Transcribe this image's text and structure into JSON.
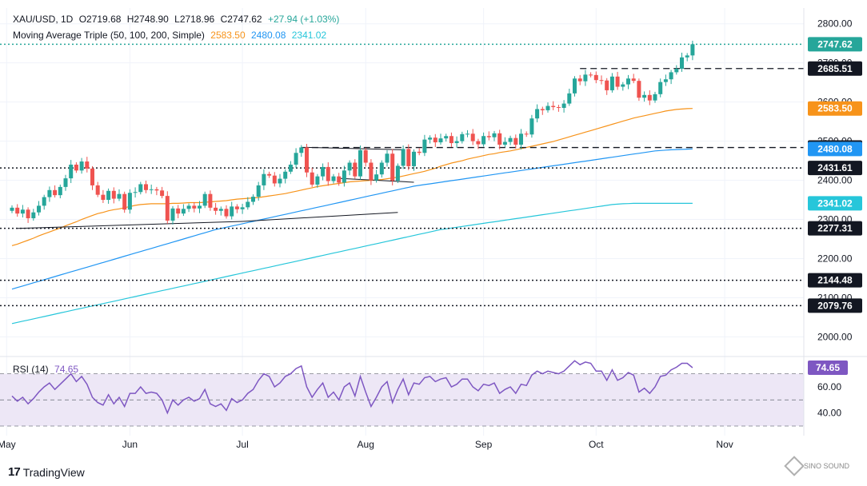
{
  "header": {
    "symbol": "XAU/USD, 1D",
    "o": "O2719.68",
    "h": "H2748.90",
    "l": "L2718.96",
    "c": "C2747.62",
    "change": "+27.94 (+1.03%)",
    "ma_label": "Moving Average Triple (50, 100, 200, Simple)",
    "ma50": "2583.50",
    "ma100": "2480.08",
    "ma200": "2341.02"
  },
  "rsi_label": "RSI (14)",
  "rsi_value": "74.65",
  "branding": {
    "tradingview": "TradingView",
    "watermark": "SINO SOUND"
  },
  "colors": {
    "up": "#26a69a",
    "down": "#ef5350",
    "ma50": "#f7931a",
    "ma100": "#2196f3",
    "ma200": "#26c6da",
    "rsi": "#7e57c2",
    "rsi_band": "#ede7f6",
    "grid": "#f0f3fa"
  },
  "chart_data": {
    "type": "candlestick",
    "price_ticks": [
      2000,
      2100,
      2200,
      2300,
      2400,
      2500,
      2600,
      2700,
      2800
    ],
    "price_range": [
      1960,
      2830
    ],
    "x_labels": [
      {
        "label": "May",
        "i": -1
      },
      {
        "label": "Jun",
        "i": 22
      },
      {
        "label": "Jul",
        "i": 43
      },
      {
        "label": "Aug",
        "i": 66
      },
      {
        "label": "Sep",
        "i": 88
      },
      {
        "label": "Oct",
        "i": 109
      },
      {
        "label": "Nov",
        "i": 133
      }
    ],
    "horizontal_levels": [
      {
        "value": 2747.62,
        "style": "dotted",
        "color": "#26a69a",
        "label": "2747.62",
        "box": "#26a69a"
      },
      {
        "value": 2685.51,
        "style": "dashed",
        "color": "#131722",
        "label": "2685.51",
        "box": "#131722",
        "from": 106
      },
      {
        "value": 2483.75,
        "style": "dashed",
        "color": "#131722",
        "label": "2483.75",
        "box": "#131722",
        "from": 54
      },
      {
        "value": 2431.61,
        "style": "dotted",
        "color": "#131722",
        "label": "2431.61",
        "box": "#131722"
      },
      {
        "value": 2277.31,
        "style": "dotted",
        "color": "#131722",
        "label": "2277.31",
        "box": "#131722"
      },
      {
        "value": 2144.48,
        "style": "dotted",
        "color": "#131722",
        "label": "2144.48",
        "box": "#131722"
      },
      {
        "value": 2079.76,
        "style": "dotted",
        "color": "#131722",
        "label": "2079.76",
        "box": "#131722"
      }
    ],
    "ma_labels": [
      {
        "value": 2583.5,
        "label": "2583.50",
        "box": "#f7931a"
      },
      {
        "value": 2480.08,
        "label": "2480.08",
        "box": "#2196f3"
      },
      {
        "value": 2341.02,
        "label": "2341.02",
        "box": "#26c6da"
      }
    ],
    "trendlines": [
      {
        "i1": 1,
        "v1": 2277,
        "i2": 43,
        "v2": 2295
      },
      {
        "i1": 43,
        "v1": 2295,
        "i2": 72,
        "v2": 2318
      },
      {
        "i1": 61,
        "v1": 2405,
        "i2": 75,
        "v2": 2395
      },
      {
        "i1": 55,
        "v1": 2484,
        "i2": 73,
        "v2": 2478
      }
    ],
    "closes": [
      2330,
      2315,
      2325,
      2303,
      2318,
      2335,
      2357,
      2375,
      2362,
      2383,
      2405,
      2440,
      2425,
      2448,
      2430,
      2387,
      2363,
      2350,
      2373,
      2353,
      2365,
      2325,
      2368,
      2370,
      2390,
      2375,
      2377,
      2374,
      2360,
      2297,
      2328,
      2315,
      2327,
      2335,
      2328,
      2335,
      2365,
      2330,
      2322,
      2327,
      2308,
      2333,
      2326,
      2331,
      2345,
      2358,
      2387,
      2416,
      2412,
      2392,
      2404,
      2422,
      2440,
      2470,
      2484,
      2420,
      2389,
      2410,
      2434,
      2398,
      2410,
      2394,
      2425,
      2445,
      2410,
      2477,
      2445,
      2400,
      2415,
      2445,
      2468,
      2399,
      2437,
      2480,
      2436,
      2473,
      2470,
      2504,
      2509,
      2497,
      2507,
      2513,
      2495,
      2500,
      2518,
      2519,
      2500,
      2492,
      2513,
      2510,
      2520,
      2491,
      2498,
      2508,
      2491,
      2519,
      2517,
      2558,
      2582,
      2579,
      2590,
      2587,
      2585,
      2596,
      2622,
      2660,
      2653,
      2670,
      2669,
      2656,
      2655,
      2630,
      2665,
      2639,
      2645,
      2660,
      2654,
      2611,
      2618,
      2604,
      2620,
      2651,
      2658,
      2676,
      2685,
      2714,
      2719,
      2747.62
    ],
    "ma50": [
      2233,
      2237,
      2242,
      2247,
      2252,
      2258,
      2263,
      2268,
      2273,
      2278,
      2284,
      2289,
      2294,
      2300,
      2305,
      2310,
      2315,
      2318,
      2322,
      2325,
      2327,
      2330,
      2333,
      2336,
      2338,
      2339,
      2340,
      2340,
      2340,
      2340,
      2341,
      2341,
      2342,
      2343,
      2343,
      2343,
      2344,
      2345,
      2346,
      2347,
      2348,
      2350,
      2352,
      2353,
      2354,
      2355,
      2356,
      2358,
      2360,
      2362,
      2364,
      2366,
      2369,
      2372,
      2375,
      2378,
      2381,
      2384,
      2386,
      2388,
      2390,
      2392,
      2394,
      2396,
      2397,
      2398,
      2399,
      2400,
      2401,
      2402,
      2404,
      2406,
      2408,
      2411,
      2414,
      2417,
      2420,
      2423,
      2427,
      2431,
      2436,
      2440,
      2444,
      2447,
      2450,
      2454,
      2457,
      2460,
      2463,
      2466,
      2468,
      2471,
      2473,
      2475,
      2478,
      2481,
      2484,
      2487,
      2490,
      2493,
      2496,
      2499,
      2503,
      2507,
      2511,
      2515,
      2519,
      2523,
      2527,
      2531,
      2535,
      2539,
      2543,
      2547,
      2551,
      2555,
      2559,
      2562,
      2565,
      2568,
      2571,
      2574,
      2577,
      2579,
      2581,
      2582,
      2583,
      2583.5
    ],
    "ma100": [
      2122,
      2126,
      2130,
      2134,
      2138,
      2142,
      2146,
      2150,
      2154,
      2158,
      2162,
      2166,
      2170,
      2174,
      2178,
      2182,
      2186,
      2190,
      2194,
      2198,
      2202,
      2206,
      2210,
      2214,
      2218,
      2222,
      2226,
      2230,
      2234,
      2238,
      2242,
      2246,
      2250,
      2254,
      2258,
      2262,
      2266,
      2270,
      2274,
      2277,
      2280,
      2283,
      2286,
      2289,
      2292,
      2295,
      2298,
      2301,
      2304,
      2307,
      2310,
      2313,
      2316,
      2319,
      2322,
      2325,
      2328,
      2331,
      2334,
      2337,
      2340,
      2343,
      2346,
      2349,
      2352,
      2355,
      2358,
      2361,
      2364,
      2367,
      2370,
      2373,
      2376,
      2379,
      2382,
      2385,
      2387,
      2389,
      2391,
      2393,
      2395,
      2397,
      2399,
      2401,
      2403,
      2405,
      2407,
      2409,
      2411,
      2413,
      2415,
      2417,
      2419,
      2421,
      2423,
      2425,
      2427,
      2429,
      2431,
      2433,
      2435,
      2437,
      2439,
      2441,
      2443,
      2445,
      2447,
      2449,
      2451,
      2453,
      2455,
      2457,
      2459,
      2461,
      2463,
      2465,
      2467,
      2469,
      2471,
      2473,
      2475,
      2476,
      2477,
      2478,
      2478.5,
      2479,
      2479.5,
      2480.08
    ],
    "ma200": [
      2034,
      2037,
      2040,
      2043,
      2046,
      2049,
      2052,
      2055,
      2058,
      2061,
      2064,
      2067,
      2070,
      2073,
      2076,
      2079,
      2082,
      2085,
      2088,
      2091,
      2094,
      2097,
      2100,
      2103,
      2106,
      2109,
      2112,
      2115,
      2118,
      2121,
      2124,
      2127,
      2130,
      2133,
      2136,
      2139,
      2142,
      2145,
      2148,
      2151,
      2154,
      2157,
      2160,
      2163,
      2166,
      2169,
      2172,
      2175,
      2178,
      2181,
      2184,
      2187,
      2190,
      2193,
      2196,
      2199,
      2202,
      2205,
      2208,
      2211,
      2214,
      2217,
      2220,
      2223,
      2226,
      2229,
      2232,
      2235,
      2238,
      2241,
      2244,
      2247,
      2250,
      2253,
      2256,
      2259,
      2262,
      2265,
      2268,
      2271,
      2274,
      2276,
      2278,
      2280,
      2282,
      2284,
      2286,
      2288,
      2290,
      2292,
      2294,
      2296,
      2298,
      2300,
      2302,
      2304,
      2306,
      2308,
      2310,
      2312,
      2314,
      2316,
      2318,
      2320,
      2322,
      2324,
      2326,
      2328,
      2330,
      2332,
      2334,
      2336,
      2338,
      2339,
      2340,
      2340.5,
      2341,
      2341,
      2341,
      2341,
      2341,
      2341,
      2341,
      2341,
      2341,
      2341,
      2341,
      2341.02
    ],
    "rsi": {
      "range": [
        30,
        82
      ],
      "ticks": [
        40,
        60
      ],
      "bands": [
        30,
        70
      ],
      "midline": 50,
      "values": [
        53,
        49,
        52,
        47,
        51,
        56,
        60,
        63,
        58,
        62,
        66,
        70,
        64,
        68,
        62,
        52,
        48,
        46,
        54,
        47,
        52,
        45,
        55,
        55,
        60,
        55,
        56,
        55,
        50,
        40,
        50,
        46,
        50,
        52,
        49,
        51,
        58,
        47,
        45,
        47,
        42,
        51,
        48,
        50,
        55,
        58,
        65,
        70,
        68,
        60,
        63,
        68,
        70,
        74,
        76,
        60,
        52,
        58,
        63,
        52,
        56,
        50,
        60,
        63,
        53,
        68,
        56,
        45,
        52,
        60,
        64,
        48,
        58,
        66,
        54,
        63,
        62,
        67,
        68,
        64,
        66,
        67,
        60,
        62,
        66,
        66,
        60,
        57,
        62,
        61,
        63,
        55,
        58,
        60,
        55,
        62,
        61,
        69,
        72,
        70,
        72,
        71,
        70,
        72,
        76,
        80,
        77,
        79,
        78,
        72,
        72,
        65,
        73,
        65,
        67,
        71,
        69,
        56,
        59,
        55,
        60,
        68,
        69,
        73,
        75,
        78,
        78,
        74.65
      ]
    }
  }
}
